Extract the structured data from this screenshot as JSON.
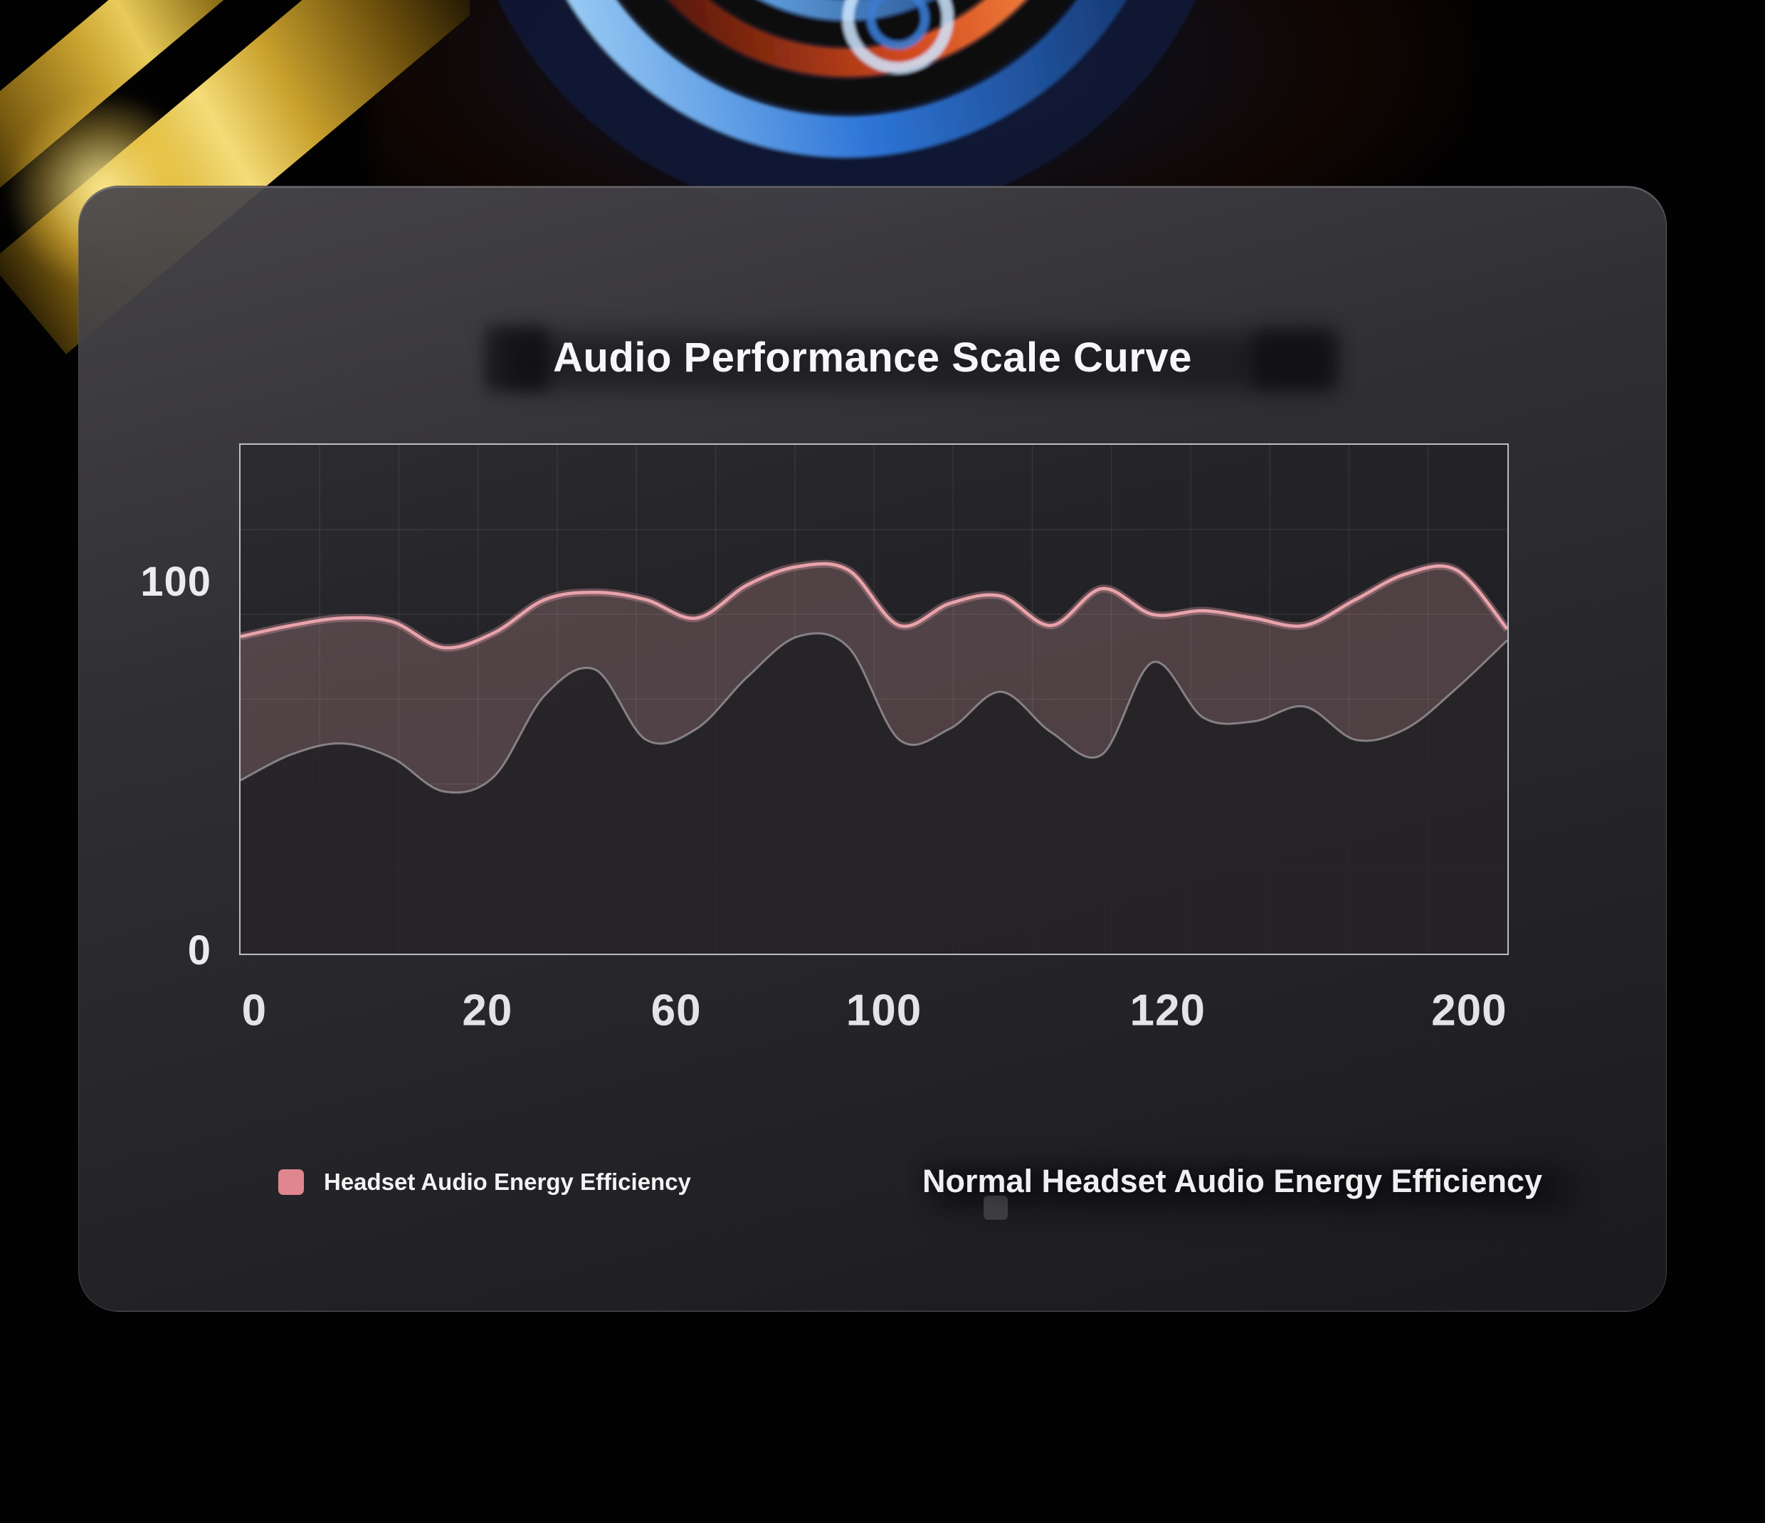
{
  "chart_data": {
    "type": "area",
    "title": "Audio Performance Scale Curve",
    "xlabel": "",
    "ylabel": "",
    "ylim": [
      0,
      138
    ],
    "grid": true,
    "legend_position": "bottom",
    "x_tick_labels": [
      "0",
      "20",
      "60",
      "100",
      "120",
      "200"
    ],
    "x_tick_positions": [
      0.012,
      0.196,
      0.345,
      0.509,
      0.733,
      0.971
    ],
    "y_ticks": [
      {
        "label": "100",
        "value": 100
      },
      {
        "label": "0",
        "value": 0
      }
    ],
    "series": [
      {
        "name": "Headset Audio Energy Efficiency",
        "color": "#e9a3ab",
        "swatch_color": "#e0868e",
        "fill": "rgba(213,160,163,0.26)",
        "values": [
          86,
          89,
          91,
          90,
          83,
          87,
          96,
          98,
          96,
          91,
          100,
          105,
          104,
          89,
          95,
          97,
          89,
          99,
          92,
          93,
          91,
          89,
          96,
          103,
          104,
          88
        ]
      },
      {
        "name": "Normal Headset Audio Energy Efficiency",
        "color": "rgba(205,205,212,0.5)",
        "swatch_color": "#3c3c41",
        "fill": "rgba(28,28,32,0.78)",
        "values": [
          47,
          54,
          57,
          53,
          44,
          48,
          70,
          77,
          58,
          61,
          75,
          86,
          83,
          58,
          61,
          71,
          60,
          54,
          79,
          64,
          63,
          67,
          58,
          61,
          72,
          85
        ]
      }
    ]
  }
}
